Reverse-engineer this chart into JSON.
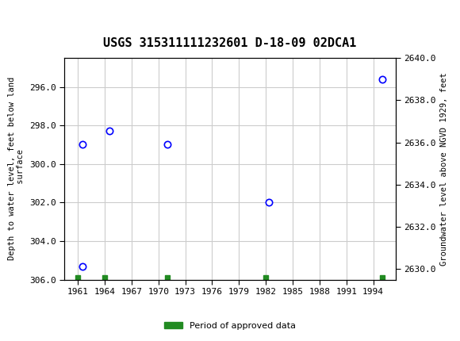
{
  "title": "USGS 315311111232601 D-18-09 02DCA1",
  "ylabel_left": "Depth to water level, feet below land\n surface",
  "ylabel_right": "Groundwater level above NGVD 1929, feet",
  "data_points": [
    {
      "year": 1961.5,
      "depth": 299.0
    },
    {
      "year": 1964.5,
      "depth": 298.3
    },
    {
      "year": 1971.0,
      "depth": 299.0
    },
    {
      "year": 1982.3,
      "depth": 302.0
    },
    {
      "year": 1995.0,
      "depth": 295.6
    }
  ],
  "green_bar_years": [
    1961,
    1964,
    1971,
    1982,
    1995
  ],
  "green_bar_depth": 305.9,
  "point_at_305": {
    "year": 1961.5,
    "depth": 305.3
  },
  "ylim_left_bottom": 306.0,
  "ylim_left_top": 294.5,
  "ylim_right_top": 2640.0,
  "ylim_right_bottom": 2629.5,
  "yticks_left": [
    296.0,
    298.0,
    300.0,
    302.0,
    304.0,
    306.0
  ],
  "yticks_right": [
    2630.0,
    2632.0,
    2634.0,
    2636.0,
    2638.0,
    2640.0
  ],
  "xticks": [
    1961,
    1964,
    1967,
    1970,
    1973,
    1976,
    1979,
    1982,
    1985,
    1988,
    1991,
    1994
  ],
  "xlim_left": 1959.5,
  "xlim_right": 1996.5,
  "header_color": "#1a7a40",
  "point_marker_color": "blue",
  "grid_color": "#cccccc",
  "legend_label": "Period of approved data",
  "legend_color": "#228b22"
}
